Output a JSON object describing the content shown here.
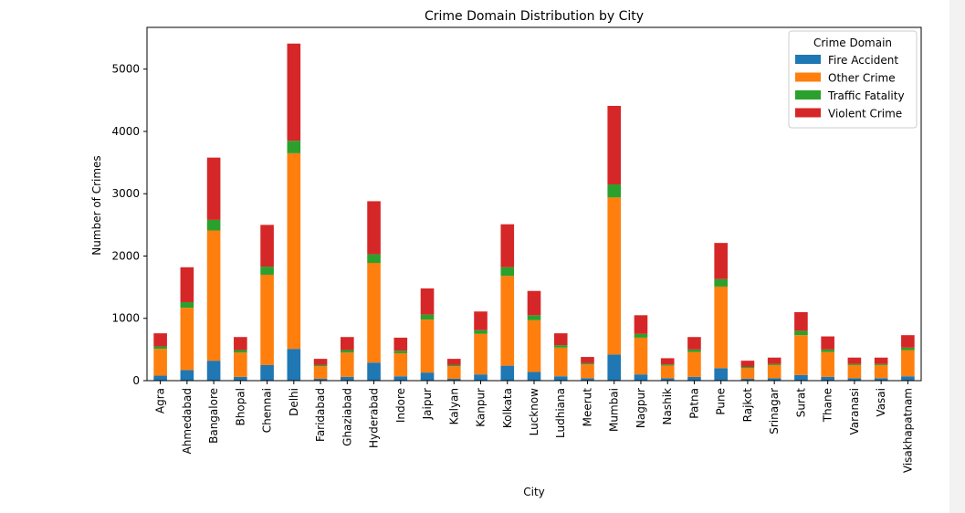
{
  "chart_data": {
    "type": "bar",
    "stacked": true,
    "title": "Crime Domain Distribution by City",
    "xlabel": "City",
    "ylabel": "Number of Crimes",
    "ylim": [
      0,
      5670
    ],
    "yticks": [
      0,
      1000,
      2000,
      3000,
      4000,
      5000
    ],
    "grid": false,
    "legend": {
      "title": "Crime Domain",
      "placement": "top-right"
    },
    "categories": [
      "Agra",
      "Ahmedabad",
      "Bangalore",
      "Bhopal",
      "Chennai",
      "Delhi",
      "Faridabad",
      "Ghaziabad",
      "Hyderabad",
      "Indore",
      "Jaipur",
      "Kalyan",
      "Kanpur",
      "Kolkata",
      "Lucknow",
      "Ludhiana",
      "Meerut",
      "Mumbai",
      "Nagpur",
      "Nashik",
      "Patna",
      "Pune",
      "Rajkot",
      "Srinagar",
      "Surat",
      "Thane",
      "Varanasi",
      "Vasai",
      "Visakhapatnam"
    ],
    "series": [
      {
        "name": "Fire Accident",
        "color": "#1f77b4",
        "values": [
          80,
          170,
          320,
          60,
          250,
          510,
          30,
          60,
          290,
          70,
          130,
          30,
          100,
          240,
          140,
          70,
          40,
          420,
          100,
          40,
          60,
          200,
          30,
          40,
          90,
          60,
          40,
          40,
          70
        ]
      },
      {
        "name": "Other Crime",
        "color": "#ff7f0e",
        "values": [
          430,
          1000,
          2090,
          390,
          1450,
          3140,
          200,
          390,
          1600,
          370,
          850,
          200,
          650,
          1440,
          830,
          460,
          220,
          2520,
          590,
          200,
          400,
          1310,
          170,
          210,
          640,
          400,
          210,
          210,
          420
        ]
      },
      {
        "name": "Traffic Fatality",
        "color": "#2ca02c",
        "values": [
          40,
          90,
          170,
          40,
          130,
          200,
          20,
          40,
          140,
          40,
          80,
          20,
          60,
          140,
          80,
          40,
          20,
          210,
          60,
          20,
          40,
          120,
          20,
          20,
          70,
          40,
          20,
          20,
          40
        ]
      },
      {
        "name": "Violent Crime",
        "color": "#d62728",
        "values": [
          210,
          560,
          1000,
          210,
          670,
          1560,
          100,
          210,
          850,
          210,
          420,
          100,
          300,
          690,
          390,
          190,
          100,
          1260,
          300,
          100,
          200,
          580,
          100,
          100,
          300,
          210,
          100,
          100,
          200
        ]
      }
    ]
  }
}
